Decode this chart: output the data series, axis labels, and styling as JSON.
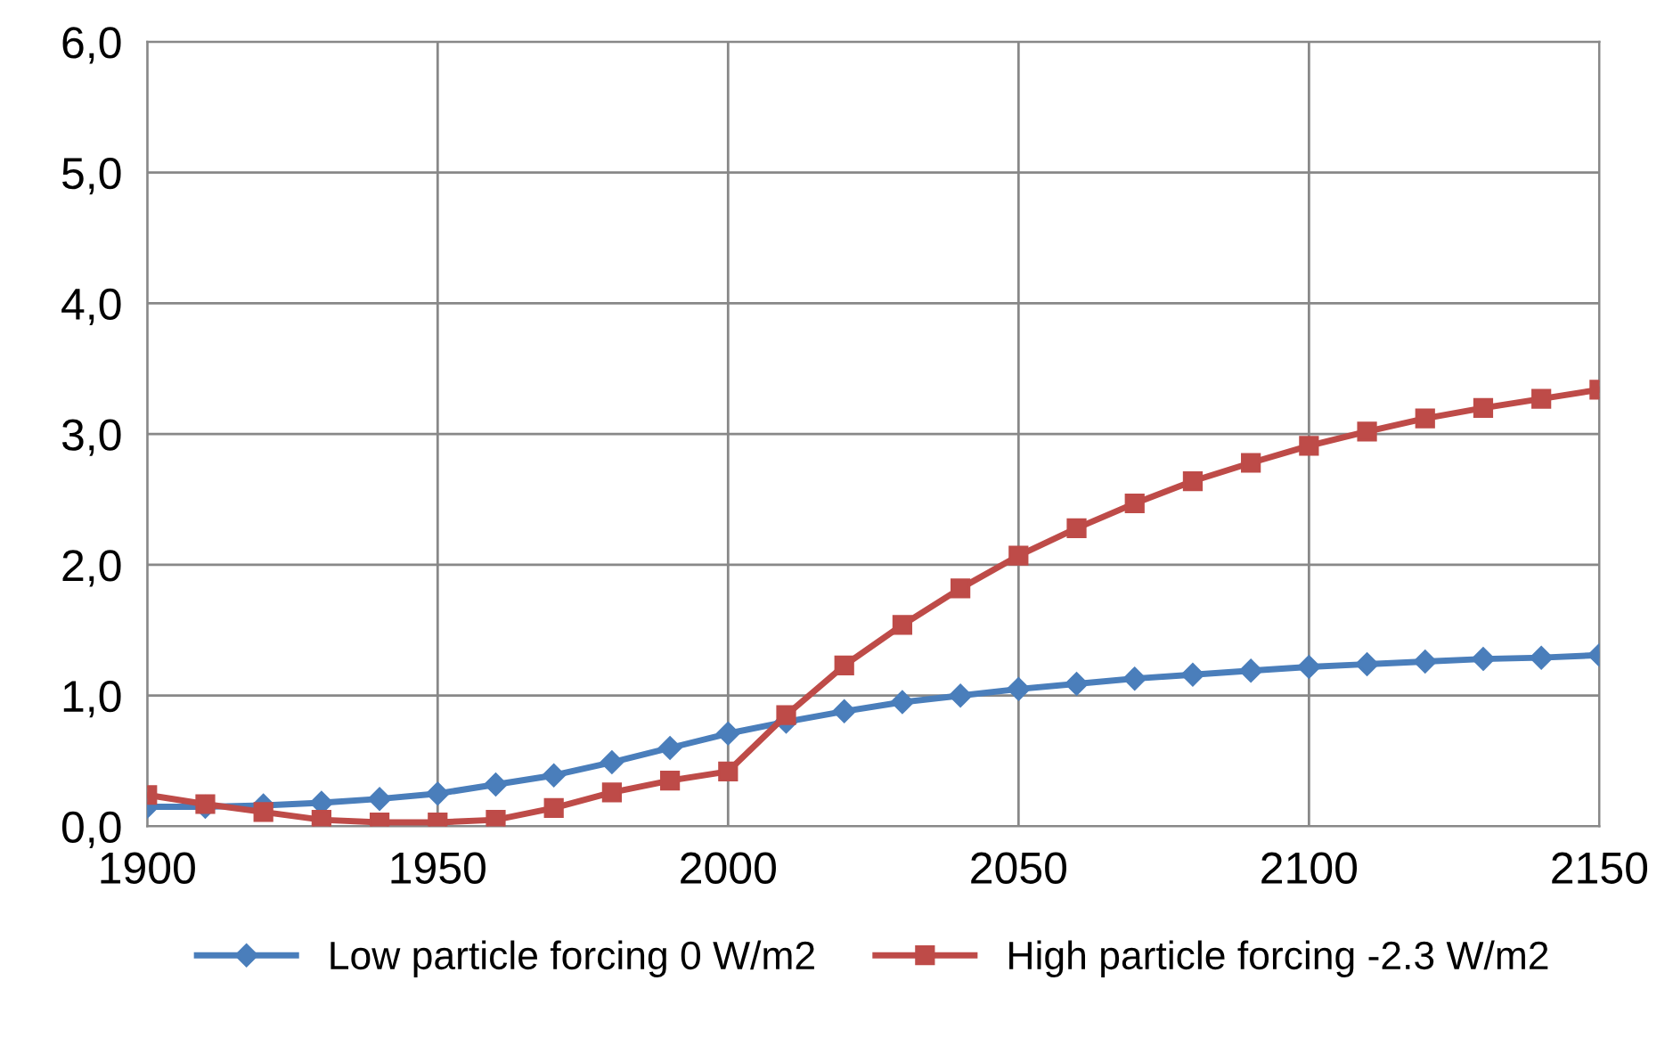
{
  "chart_data": {
    "type": "line",
    "x": [
      1900,
      1910,
      1920,
      1930,
      1940,
      1950,
      1960,
      1970,
      1980,
      1990,
      2000,
      2010,
      2020,
      2030,
      2040,
      2050,
      2060,
      2070,
      2080,
      2090,
      2100,
      2110,
      2120,
      2130,
      2140,
      2150
    ],
    "series": [
      {
        "name": "Low particle forcing 0 W/m2",
        "color": "#4a7ebb",
        "marker": "diamond",
        "values": [
          0.15,
          0.15,
          0.16,
          0.18,
          0.21,
          0.25,
          0.32,
          0.39,
          0.49,
          0.6,
          0.71,
          0.8,
          0.88,
          0.95,
          1.0,
          1.05,
          1.09,
          1.13,
          1.16,
          1.19,
          1.22,
          1.24,
          1.26,
          1.28,
          1.29,
          1.31
        ]
      },
      {
        "name": "High particle forcing -2.3 W/m2",
        "color": "#be4b48",
        "marker": "square",
        "values": [
          0.24,
          0.17,
          0.11,
          0.05,
          0.03,
          0.03,
          0.05,
          0.14,
          0.26,
          0.35,
          0.42,
          0.85,
          1.23,
          1.54,
          1.82,
          2.07,
          2.28,
          2.47,
          2.64,
          2.78,
          2.91,
          3.02,
          3.12,
          3.2,
          3.27,
          3.34
        ]
      }
    ],
    "xlim": [
      1900,
      2150
    ],
    "xticks": [
      1900,
      1950,
      2000,
      2050,
      2100,
      2150
    ],
    "ylim": [
      0,
      6
    ],
    "yticks": [
      {
        "value": 0,
        "label": "0,0"
      },
      {
        "value": 1,
        "label": "1,0"
      },
      {
        "value": 2,
        "label": "2,0"
      },
      {
        "value": 3,
        "label": "3,0"
      },
      {
        "value": 4,
        "label": "4,0"
      },
      {
        "value": 5,
        "label": "5,0"
      },
      {
        "value": 6,
        "label": "6,0"
      }
    ],
    "grid": true,
    "legend": "bottom",
    "line_style": "solid"
  }
}
